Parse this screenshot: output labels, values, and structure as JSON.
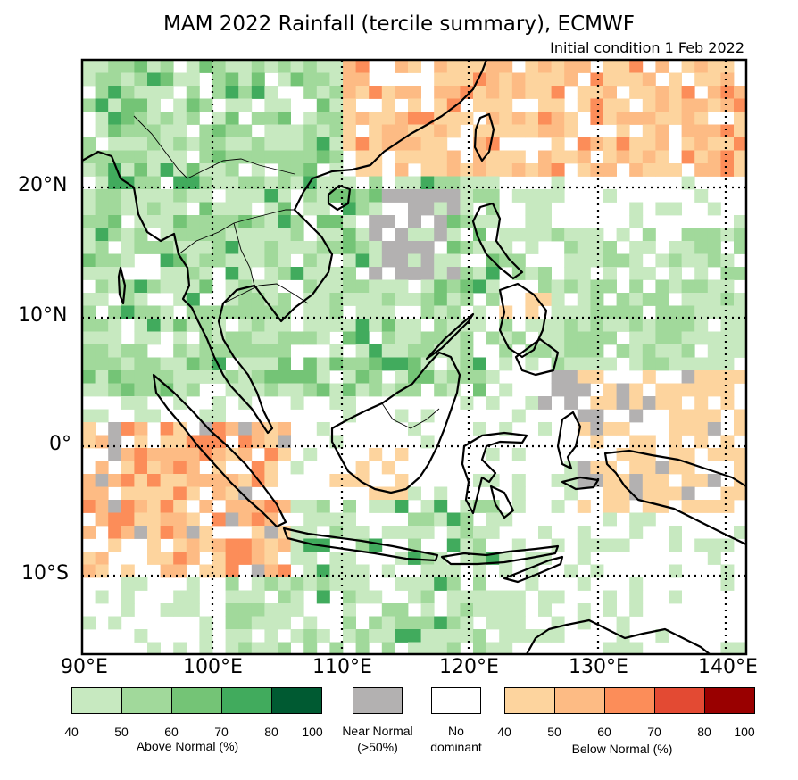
{
  "title": "MAM 2022 Rainfall (tercile summary), ECMWF",
  "subtitle": "Initial condition 1 Feb 2022",
  "axes": {
    "lat_labels": [
      "20°N",
      "10°N",
      "0°",
      "10°S"
    ],
    "lon_labels": [
      "90°E",
      "100°E",
      "110°E",
      "120°E",
      "130°E",
      "140°E"
    ]
  },
  "legend": {
    "above": {
      "caption": "Above Normal (%)",
      "ticks": [
        "40",
        "50",
        "60",
        "70",
        "80",
        "100"
      ],
      "colors": [
        "#c7e9c0",
        "#a1d99b",
        "#74c476",
        "#41ab5d",
        "#005a32"
      ]
    },
    "near": {
      "caption_line1": "Near Normal",
      "caption_line2": "(>50%)",
      "color": "#b3b1b1"
    },
    "none": {
      "caption_line1": "No",
      "caption_line2": "dominant",
      "color": "#ffffff"
    },
    "below": {
      "caption": "Below Normal (%)",
      "ticks": [
        "40",
        "50",
        "60",
        "70",
        "80",
        "100"
      ],
      "colors": [
        "#fdd49e",
        "#fdbb84",
        "#fc8d59",
        "#e34a33",
        "#990000"
      ]
    }
  }
}
